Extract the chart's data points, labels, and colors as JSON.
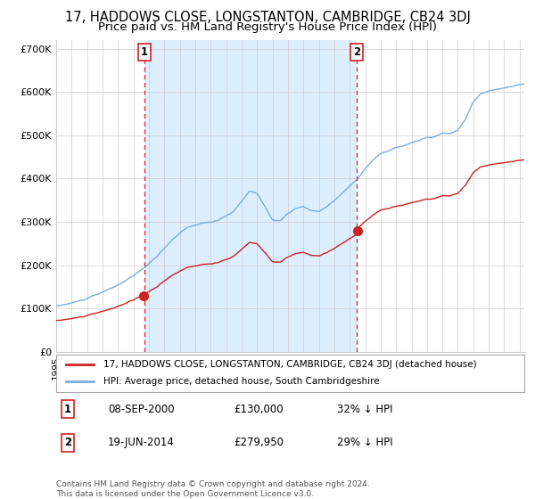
{
  "title": "17, HADDOWS CLOSE, LONGSTANTON, CAMBRIDGE, CB24 3DJ",
  "subtitle": "Price paid vs. HM Land Registry's House Price Index (HPI)",
  "ylabel_ticks": [
    "£0",
    "£100K",
    "£200K",
    "£300K",
    "£400K",
    "£500K",
    "£600K",
    "£700K"
  ],
  "ytick_values": [
    0,
    100000,
    200000,
    300000,
    400000,
    500000,
    600000,
    700000
  ],
  "ylim": [
    0,
    720000
  ],
  "xlim_start": 1995.0,
  "xlim_end": 2025.3,
  "sale1_date": 2000.69,
  "sale1_price": 130000,
  "sale1_label": "1",
  "sale2_date": 2014.46,
  "sale2_price": 279950,
  "sale2_label": "2",
  "hpi_color": "#7aaedc",
  "price_color": "#cc2222",
  "sale_marker_color": "#cc2222",
  "vline_color": "#cc2222",
  "grid_color": "#cccccc",
  "bg_color": "#ffffff",
  "shade_color": "#ddeeff",
  "legend_label1": "17, HADDOWS CLOSE, LONGSTANTON, CAMBRIDGE, CB24 3DJ (detached house)",
  "legend_label2": "HPI: Average price, detached house, South Cambridgeshire",
  "annotation1": "08-SEP-2000",
  "annotation1_price": "£130,000",
  "annotation1_hpi": "32% ↓ HPI",
  "annotation2": "19-JUN-2014",
  "annotation2_price": "£279,950",
  "annotation2_hpi": "29% ↓ HPI",
  "footer": "Contains HM Land Registry data © Crown copyright and database right 2024.\nThis data is licensed under the Open Government Licence v3.0.",
  "title_fontsize": 10.5,
  "subtitle_fontsize": 9.5
}
